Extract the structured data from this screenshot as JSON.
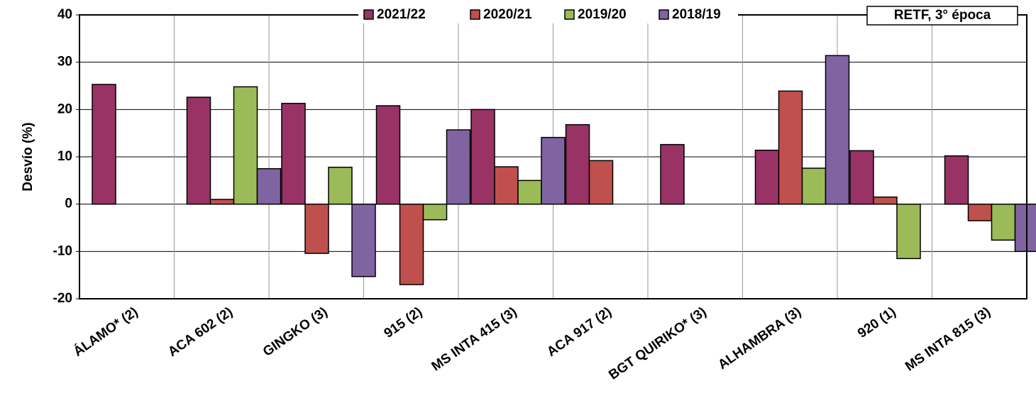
{
  "chart_data": {
    "type": "bar",
    "title": "RETF, 3° época",
    "y_label": "Desvío (%)",
    "categories": [
      "ÁLAMO* (2)",
      "ACA 602 (2)",
      "GINGKO (3)",
      "915 (2)",
      "MS INTA 415 (3)",
      "ACA 917 (2)",
      "BGT QUIRIKO* (3)",
      "ALHAMBRA (3)",
      "920 (1)",
      "MS INTA 815 (3)"
    ],
    "series": [
      {
        "name": "2021/22",
        "color": "#993366",
        "values": [
          25.3,
          22.6,
          21.3,
          20.8,
          20.0,
          16.8,
          12.6,
          11.4,
          11.3,
          10.2
        ]
      },
      {
        "name": "2020/21",
        "color": "#c0504d",
        "values": [
          null,
          1.0,
          -10.4,
          -17.0,
          7.9,
          9.2,
          null,
          23.9,
          1.5,
          -3.5
        ]
      },
      {
        "name": "2019/20",
        "color": "#9bbb59",
        "values": [
          null,
          24.8,
          7.8,
          -3.3,
          5.0,
          null,
          null,
          7.6,
          -11.5,
          -7.6
        ]
      },
      {
        "name": "2018/19",
        "color": "#8064a2",
        "values": [
          null,
          7.5,
          -15.3,
          15.7,
          14.1,
          null,
          null,
          31.4,
          null,
          -10.0
        ]
      }
    ],
    "ylim": [
      -20,
      40
    ],
    "yticks": [
      -20,
      -10,
      0,
      10,
      20,
      30,
      40
    ],
    "grid": true
  }
}
